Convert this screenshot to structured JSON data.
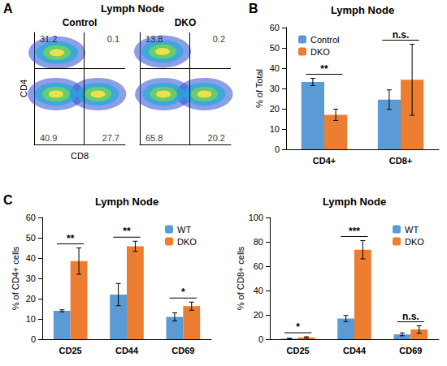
{
  "chart_data": [
    {
      "type": "scatter",
      "panel": "A",
      "header": "Lymph Node",
      "title": "Control",
      "x_label": "CD8",
      "y_label": "CD4",
      "xlim": [
        0,
        100
      ],
      "ylim": [
        0,
        100
      ],
      "tick_labels": false,
      "grid": false,
      "gate": {
        "x": 55,
        "y": 68
      },
      "quadrants": {
        "upper_left": 31.2,
        "upper_right": 0.1,
        "lower_left": 40.9,
        "lower_right": 27.7
      },
      "points": {
        "x": [
          25,
          24,
          70
        ],
        "y": [
          82,
          45,
          45
        ]
      }
    },
    {
      "type": "scatter",
      "title": "DKO",
      "xlim": [
        0,
        100
      ],
      "ylim": [
        0,
        100
      ],
      "tick_labels": false,
      "grid": false,
      "gate": {
        "x": 55,
        "y": 68
      },
      "quadrants": {
        "upper_left": 13.8,
        "upper_right": 0.2,
        "lower_left": 65.8,
        "lower_right": 20.2
      },
      "points": {
        "x": [
          25,
          26,
          71
        ],
        "y": [
          83,
          45,
          45
        ]
      }
    },
    {
      "type": "bar",
      "panel": "B",
      "title": "Lymph Node",
      "y_label": "% of Total",
      "categories": [
        "CD4+",
        "CD8+"
      ],
      "series": [
        {
          "name": "Control",
          "color": "#5b9bd5",
          "values": [
            33.2,
            24.5
          ],
          "errors": [
            1.8,
            4.8
          ]
        },
        {
          "name": "DKO",
          "color": "#ed7d31",
          "values": [
            17,
            34.3
          ],
          "errors": [
            2.8,
            17.5
          ]
        }
      ],
      "significance": [
        "**",
        "n.s."
      ],
      "ylim": [
        0,
        60
      ],
      "yticks": [
        0,
        10,
        20,
        30,
        40,
        50,
        60
      ],
      "legend": "upper left",
      "grid": false
    },
    {
      "type": "bar",
      "panel": "C",
      "title": "Lymph Node",
      "y_label": "% of CD4+ cells",
      "categories": [
        "CD25",
        "CD44",
        "CD69"
      ],
      "series": [
        {
          "name": "WT",
          "color": "#5b9bd5",
          "values": [
            14,
            22,
            11
          ],
          "errors": [
            0.5,
            5.5,
            2
          ]
        },
        {
          "name": "DKO",
          "color": "#ed7d31",
          "values": [
            38.5,
            45.8,
            16.3
          ],
          "errors": [
            6.5,
            2.5,
            2
          ]
        }
      ],
      "significance": [
        "**",
        "**",
        "*"
      ],
      "ylim": [
        0,
        60
      ],
      "yticks": [
        0,
        10,
        20,
        30,
        40,
        50,
        60
      ],
      "legend": "upper right",
      "grid": false
    },
    {
      "type": "bar",
      "title": "Lymph Node",
      "y_label": "% of CD8+ cells",
      "categories": [
        "CD25",
        "CD44",
        "CD69"
      ],
      "series": [
        {
          "name": "WT",
          "color": "#5b9bd5",
          "values": [
            0.5,
            17,
            4
          ],
          "errors": [
            0.3,
            2.5,
            1.2
          ]
        },
        {
          "name": "DKO",
          "color": "#ed7d31",
          "values": [
            1.5,
            73.5,
            8
          ],
          "errors": [
            0.5,
            7.5,
            3
          ]
        }
      ],
      "significance": [
        "*",
        "***",
        "n.s."
      ],
      "ylim": [
        0,
        100
      ],
      "yticks": [
        0,
        20,
        40,
        60,
        80,
        100
      ],
      "legend": "upper right",
      "grid": false
    }
  ]
}
